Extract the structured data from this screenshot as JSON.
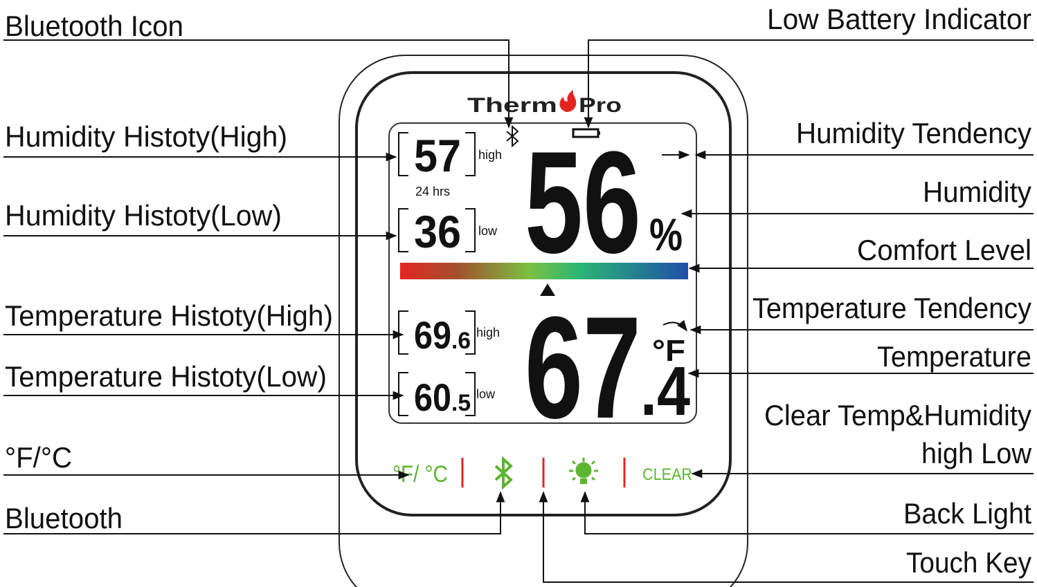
{
  "callouts": {
    "left": [
      "Bluetooth Icon",
      "Humidity Histoty(High)",
      "Humidity Histoty(Low)",
      "Temperature Histoty(High)",
      "Temperature Histoty(Low)",
      "°F/°C",
      "Bluetooth"
    ],
    "right": [
      "Low Battery Indicator",
      "Humidity Tendency",
      "Humidity",
      "Comfort Level",
      "Temperature Tendency",
      "Temperature",
      "Clear Temp&Humidity",
      "high Low",
      "Back Light",
      "Touch Key"
    ]
  },
  "device": {
    "brand": {
      "left": "Therm",
      "right": "Pro"
    },
    "history": {
      "humidity_high": "57",
      "high_label": "high",
      "period": "24 hrs",
      "humidity_low": "36",
      "low_label": "low",
      "temp_high": "69",
      "temp_high_decimal": ".6",
      "temp_high_label": "high",
      "temp_low": "60",
      "temp_low_decimal": ".5",
      "temp_low_label": "low"
    },
    "humidity": {
      "value": "56",
      "unit": "%"
    },
    "temperature": {
      "value": "67",
      "decimal": ".4",
      "unit": "°F"
    },
    "buttons": {
      "unit": "°F/ °C",
      "clear": "CLEAR"
    }
  }
}
